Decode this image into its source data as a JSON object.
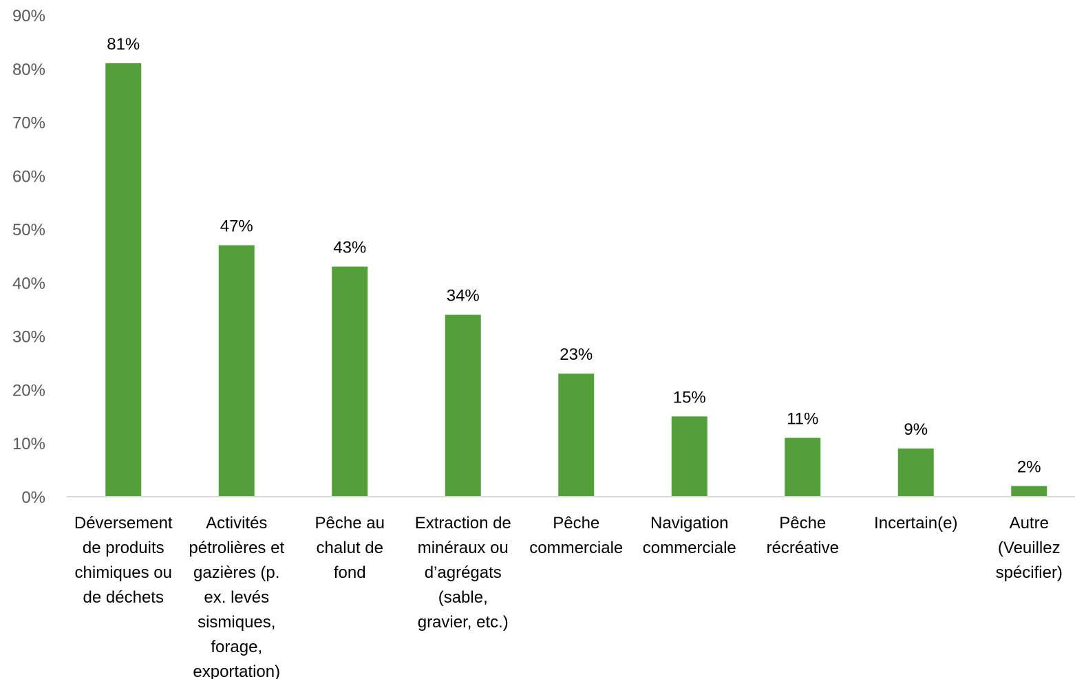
{
  "chart_data": {
    "type": "bar",
    "categories": [
      [
        "Déversement",
        "de produits",
        "chimiques ou",
        "de déchets"
      ],
      [
        "Activités",
        "pétrolières et",
        "gazières (p.",
        "ex. levés",
        "sismiques,",
        "forage,",
        "exportation)"
      ],
      [
        "Pêche au",
        "chalut de",
        "fond"
      ],
      [
        "Extraction de",
        "minéraux ou",
        "d’agrégats",
        "(sable,",
        "gravier, etc.)"
      ],
      [
        "Pêche",
        "commerciale"
      ],
      [
        "Navigation",
        "commerciale"
      ],
      [
        "Pêche",
        "récréative"
      ],
      [
        "Incertain(e)"
      ],
      [
        "Autre",
        "(Veuillez",
        "spécifier)"
      ]
    ],
    "values": [
      81,
      47,
      43,
      34,
      23,
      15,
      11,
      9,
      2
    ],
    "data_labels": [
      "81%",
      "47%",
      "43%",
      "34%",
      "23%",
      "15%",
      "11%",
      "9%",
      "2%"
    ],
    "y_ticks": [
      0,
      10,
      20,
      30,
      40,
      50,
      60,
      70,
      80,
      90
    ],
    "y_tick_labels": [
      "0%",
      "10%",
      "20%",
      "30%",
      "40%",
      "50%",
      "60%",
      "70%",
      "80%",
      "90%"
    ],
    "ylim": [
      0,
      90
    ],
    "grid": false,
    "legend": "none",
    "bar_color": "#539F3A",
    "axis_color": "#D9D9D9"
  }
}
